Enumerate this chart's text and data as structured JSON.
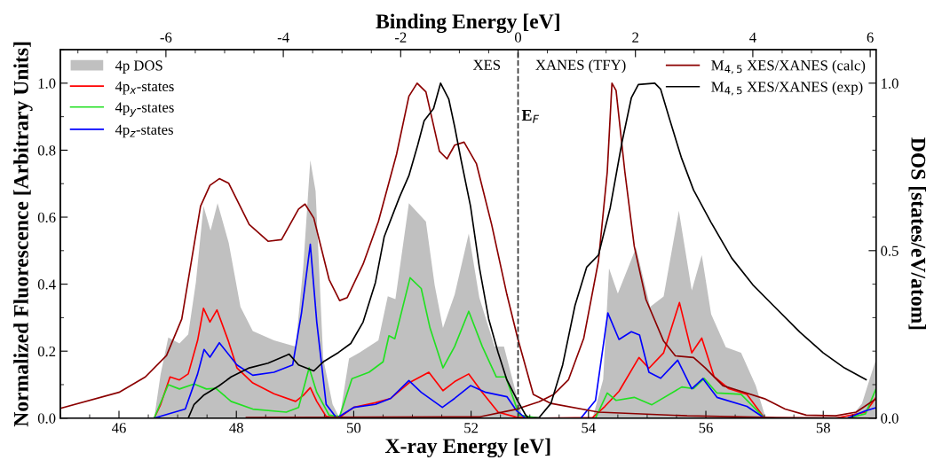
{
  "chart_data": {
    "type": "line",
    "xlabel": "X-ray Energy [eV]",
    "ylabel": "Normalized Fluorescence [Arbitrary Units]",
    "y2label": "DOS [states/eV/atom]",
    "x2label": "Binding Energy [eV]",
    "xlim": [
      45.0,
      58.9
    ],
    "xticks": [
      46,
      48,
      50,
      52,
      54,
      56,
      58
    ],
    "x2lim": [
      -7.8,
      6.1
    ],
    "x2ticks": [
      -6,
      -4,
      -2,
      0,
      2,
      4,
      6
    ],
    "ylim": [
      0,
      1.1
    ],
    "yticks": [
      {
        "value": 0,
        "label": "0.0"
      },
      {
        "value": 0.2,
        "label": "0.2"
      },
      {
        "value": 0.4,
        "label": "0.4"
      },
      {
        "value": 0.6,
        "label": "0.6"
      },
      {
        "value": 0.8,
        "label": "0.8"
      },
      {
        "value": 1,
        "label": "1.0"
      }
    ],
    "y2lim": [
      0,
      1.1
    ],
    "y2ticks": [
      {
        "value": 0,
        "label": "0.0"
      },
      {
        "value": 0.5,
        "label": "0.5"
      },
      {
        "value": 1,
        "label": "1.0"
      }
    ],
    "legend": [
      "top left",
      "top right"
    ],
    "ref_lines": [
      {
        "axis": "x",
        "value": 52.8,
        "label": "E$_{F}$",
        "line_style": "dashed",
        "color": "#333333"
      }
    ],
    "annotations": [
      "XES",
      "XANES (TFY)"
    ],
    "series": [
      {
        "name": "4p DOS",
        "type": "area",
        "axis": "y2",
        "color": "#c0c0c0",
        "x": [
          46.6,
          46.71,
          46.84,
          47.03,
          47.18,
          47.31,
          47.44,
          47.56,
          47.68,
          47.87,
          48.07,
          48.28,
          48.64,
          49.01,
          49.14,
          49.26,
          49.35,
          49.48,
          49.64,
          49.76,
          49.92,
          50.1,
          50.42,
          50.58,
          50.71,
          50.94,
          51.23,
          51.38,
          51.52,
          51.72,
          51.96,
          52.14,
          52.4,
          52.56,
          52.72,
          52.88,
          54.07,
          54.25,
          54.35,
          54.5,
          54.81,
          55.05,
          55.28,
          55.54,
          55.76,
          55.93,
          56.09,
          56.34,
          56.6,
          56.85,
          57.02,
          58.46,
          58.66,
          58.9
        ],
        "values": [
          0,
          0.132,
          0.241,
          0.223,
          0.25,
          0.405,
          0.633,
          0.56,
          0.642,
          0.523,
          0.332,
          0.26,
          0.232,
          0.214,
          0.451,
          0.77,
          0.678,
          0.178,
          0.041,
          0,
          0.178,
          0.196,
          0.232,
          0.364,
          0.355,
          0.642,
          0.587,
          0.396,
          0.269,
          0.369,
          0.551,
          0.36,
          0.214,
          0.214,
          0.105,
          0,
          0,
          0.115,
          0.447,
          0.372,
          0.509,
          0.332,
          0.363,
          0.619,
          0.381,
          0.487,
          0.31,
          0.212,
          0.195,
          0.097,
          0,
          0,
          0.044,
          0.177
        ]
      },
      {
        "name": "4p$_{x}$-states",
        "axis": "y2",
        "color": "#ff0000",
        "x": [
          45.0,
          46.6,
          46.71,
          46.87,
          47.03,
          47.18,
          47.34,
          47.44,
          47.55,
          47.67,
          47.86,
          48.01,
          48.28,
          48.64,
          49.01,
          49.14,
          49.26,
          49.37,
          49.53,
          49.74,
          50.0,
          50.37,
          50.63,
          50.94,
          51.28,
          51.52,
          51.72,
          51.96,
          52.19,
          52.46,
          52.77,
          53.16,
          54.07,
          54.28,
          54.52,
          54.86,
          55.03,
          55.28,
          55.55,
          55.76,
          55.93,
          56.14,
          56.39,
          56.7,
          57.0,
          58.21,
          58.72,
          58.9
        ],
        "values": [
          0,
          0,
          0.041,
          0.123,
          0.114,
          0.132,
          0.232,
          0.328,
          0.287,
          0.323,
          0.232,
          0.15,
          0.105,
          0.073,
          0.05,
          0.068,
          0.091,
          0.05,
          0.005,
          0,
          0.032,
          0.046,
          0.059,
          0.105,
          0.137,
          0.082,
          0.109,
          0.132,
          0.077,
          0.018,
          0.003,
          0,
          0.002,
          0.035,
          0.08,
          0.181,
          0.149,
          0.195,
          0.345,
          0.195,
          0.239,
          0.124,
          0.088,
          0.071,
          0,
          0,
          0.018,
          0.062
        ]
      },
      {
        "name": "4p$_{y}$-states",
        "axis": "y2",
        "color": "#22e022",
        "x": [
          45.0,
          46.6,
          46.84,
          47.03,
          47.28,
          47.49,
          47.65,
          47.91,
          48.28,
          48.85,
          49.06,
          49.24,
          49.37,
          49.58,
          49.76,
          49.97,
          50.26,
          50.5,
          50.6,
          50.7,
          50.96,
          51.15,
          51.3,
          51.52,
          51.72,
          51.96,
          52.19,
          52.43,
          52.59,
          52.82,
          53.16,
          54.12,
          54.32,
          54.47,
          54.78,
          55.08,
          55.59,
          55.79,
          55.97,
          56.19,
          56.6,
          57.0,
          58.41,
          58.72,
          58.9
        ],
        "values": [
          0,
          0,
          0.1,
          0.087,
          0.102,
          0.087,
          0.089,
          0.05,
          0.027,
          0.018,
          0.032,
          0.15,
          0.077,
          0.009,
          0.005,
          0.118,
          0.137,
          0.168,
          0.246,
          0.237,
          0.419,
          0.387,
          0.269,
          0.15,
          0.214,
          0.319,
          0.214,
          0.123,
          0.123,
          0.009,
          0,
          0,
          0.075,
          0.053,
          0.062,
          0.04,
          0.093,
          0.088,
          0.119,
          0.075,
          0.071,
          0,
          0,
          0.013,
          0.088
        ]
      },
      {
        "name": "4p$_{z}$-states",
        "axis": "y2",
        "color": "#0000ff",
        "x": [
          45.0,
          46.6,
          46.87,
          47.13,
          47.34,
          47.45,
          47.55,
          47.71,
          48.01,
          48.28,
          48.64,
          48.96,
          49.11,
          49.26,
          49.37,
          49.53,
          49.71,
          50.0,
          50.37,
          50.63,
          50.94,
          51.15,
          51.51,
          51.72,
          51.99,
          52.25,
          52.61,
          52.77,
          52.93,
          53.87,
          54.12,
          54.33,
          54.52,
          54.73,
          54.87,
          55.03,
          55.23,
          55.52,
          55.76,
          55.95,
          56.19,
          56.7,
          57.0,
          58.41,
          58.72,
          58.9
        ],
        "values": [
          0,
          0,
          0.014,
          0.027,
          0.132,
          0.205,
          0.182,
          0.225,
          0.159,
          0.128,
          0.137,
          0.159,
          0.314,
          0.519,
          0.287,
          0.041,
          0,
          0.032,
          0.041,
          0.059,
          0.112,
          0.077,
          0.032,
          0.059,
          0.097,
          0.077,
          0.064,
          0.023,
          0,
          0,
          0.053,
          0.314,
          0.235,
          0.258,
          0.248,
          0.137,
          0.119,
          0.173,
          0.088,
          0.118,
          0.062,
          0.035,
          0,
          0,
          0.022,
          0.031
        ]
      },
      {
        "name": "M$_{4,5}$ XES/XANES (calc)",
        "axis": "y",
        "color": "#8b0000",
        "x": [
          45.0,
          46.0,
          46.45,
          46.81,
          47.07,
          47.39,
          47.55,
          47.71,
          47.87,
          48.22,
          48.54,
          48.77,
          49.06,
          49.17,
          49.32,
          49.58,
          49.76,
          49.89,
          50.16,
          50.42,
          50.73,
          50.94,
          51.08,
          51.23,
          51.46,
          51.59,
          51.72,
          51.88,
          52.09,
          52.35,
          52.61,
          52.79,
          53.06,
          53.36,
          54.17,
          55.68,
          57.2,
          58.9
        ],
        "values": [
          0.029,
          0.077,
          0.123,
          0.187,
          0.296,
          0.633,
          0.695,
          0.715,
          0.701,
          0.578,
          0.528,
          0.533,
          0.624,
          0.639,
          0.597,
          0.414,
          0.351,
          0.36,
          0.46,
          0.587,
          0.788,
          0.961,
          1.0,
          0.974,
          0.797,
          0.774,
          0.815,
          0.824,
          0.76,
          0.578,
          0.369,
          0.241,
          0.071,
          0.044,
          0.018,
          0.007,
          0.002,
          0
        ]
      },
      {
        "axis": "y",
        "color": "#8b0000",
        "x": [
          48.17,
          52.15,
          52.78,
          53.16,
          53.41,
          53.66,
          53.92,
          54.17,
          54.32,
          54.4,
          54.47,
          54.62,
          54.78,
          54.98,
          55.28,
          55.48,
          55.79,
          55.99,
          56.29,
          56.6,
          57.0,
          57.35,
          57.71,
          58.21,
          58.56,
          58.9
        ],
        "values": [
          0.002,
          0.004,
          0.027,
          0.049,
          0.071,
          0.115,
          0.239,
          0.469,
          0.735,
          1.0,
          0.978,
          0.735,
          0.513,
          0.354,
          0.23,
          0.186,
          0.181,
          0.15,
          0.097,
          0.08,
          0.058,
          0.027,
          0.009,
          0.007,
          0.018,
          0.058
        ]
      },
      {
        "name": "M$_{4,5}$ XES/XANES (exp)",
        "axis": "y",
        "color": "#000000",
        "x": [
          47.18,
          47.28,
          47.44,
          47.7,
          47.91,
          48.22,
          48.54,
          48.85,
          48.9,
          49.06,
          49.32,
          49.48,
          49.74,
          49.95,
          50.16,
          50.37,
          50.52,
          50.78,
          50.94,
          51.09,
          51.2,
          51.36,
          51.48,
          51.62,
          51.72,
          51.83,
          51.99,
          52.14,
          52.3,
          52.46,
          52.61,
          52.77,
          52.93,
          52.98
        ],
        "values": [
          0,
          0.041,
          0.068,
          0.096,
          0.123,
          0.15,
          0.164,
          0.187,
          0.191,
          0.159,
          0.141,
          0.168,
          0.196,
          0.223,
          0.287,
          0.405,
          0.542,
          0.66,
          0.724,
          0.815,
          0.888,
          0.924,
          1.0,
          0.952,
          0.87,
          0.77,
          0.633,
          0.451,
          0.296,
          0.196,
          0.114,
          0.059,
          0.009,
          0
        ]
      },
      {
        "axis": "y",
        "color": "#000000",
        "x": [
          52.96,
          53.16,
          53.36,
          53.56,
          53.77,
          53.97,
          54.17,
          54.37,
          54.57,
          54.73,
          54.85,
          55.13,
          55.23,
          55.38,
          55.58,
          55.79,
          56.09,
          56.44,
          56.8,
          57.15,
          57.6,
          58.0,
          58.36,
          58.73
        ],
        "values": [
          0,
          0.002,
          0.044,
          0.159,
          0.336,
          0.451,
          0.487,
          0.628,
          0.823,
          0.956,
          0.996,
          1.0,
          0.982,
          0.894,
          0.779,
          0.681,
          0.584,
          0.478,
          0.398,
          0.336,
          0.257,
          0.195,
          0.15,
          0.115
        ]
      }
    ]
  }
}
